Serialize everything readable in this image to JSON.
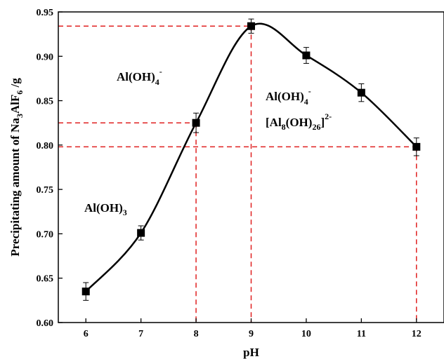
{
  "chart_data": {
    "type": "line",
    "xlabel": "pH",
    "ylabel": {
      "pre": "Precipitating amount of Na",
      "sub1": "3",
      "mid": "AlF",
      "sub2": "6",
      "post": " /g"
    },
    "xlim": [
      5.5,
      12.5
    ],
    "ylim": [
      0.6,
      0.95
    ],
    "x_ticks": [
      "6",
      "7",
      "8",
      "9",
      "10",
      "11",
      "12"
    ],
    "y_ticks": [
      "0.60",
      "0.65",
      "0.70",
      "0.75",
      "0.80",
      "0.85",
      "0.90",
      "0.95"
    ],
    "x_tick_values": [
      6,
      7,
      8,
      9,
      10,
      11,
      12
    ],
    "y_tick_values": [
      0.6,
      0.65,
      0.7,
      0.75,
      0.8,
      0.85,
      0.9,
      0.95
    ],
    "series": [
      {
        "x": [
          6,
          7,
          8,
          9,
          10,
          11,
          12
        ],
        "y": [
          0.635,
          0.701,
          0.825,
          0.934,
          0.901,
          0.859,
          0.798
        ],
        "error": [
          0.01,
          0.008,
          0.011,
          0.008,
          0.009,
          0.01,
          0.01
        ]
      }
    ],
    "reference_lines": [
      {
        "x": 8,
        "y": 0.825
      },
      {
        "x": 9,
        "y": 0.934
      },
      {
        "x": 12,
        "y": 0.798
      }
    ],
    "annotations": {
      "al_oh_3": {
        "base": "Al(OH)",
        "sub": "3"
      },
      "al_oh_4_left": {
        "base": "Al(OH)",
        "sub": "4",
        "sup": "-"
      },
      "al_oh_4_right": {
        "base": "Al(OH)",
        "sub": "4",
        "sup": "-"
      },
      "al8": {
        "open": "[Al",
        "sub1": "8",
        "mid": "(OH)",
        "sub2": "26",
        "close": "]",
        "sup": "2-"
      }
    },
    "colors": {
      "series": "#000000",
      "reference": "#e02020"
    }
  }
}
